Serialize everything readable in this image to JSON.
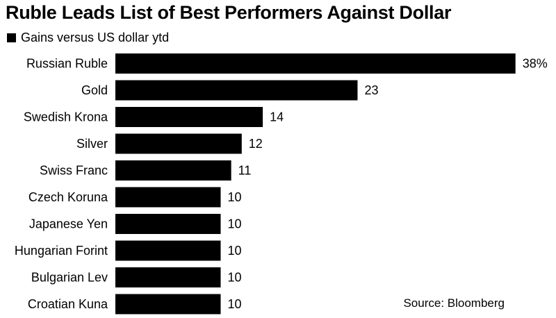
{
  "chart_data": {
    "type": "bar",
    "orientation": "horizontal",
    "title": "Ruble Leads List of Best Performers Against Dollar",
    "legend_position": "top-left",
    "categories": [
      "Russian Ruble",
      "Gold",
      "Swedish Krona",
      "Silver",
      "Swiss Franc",
      "Czech Koruna",
      "Japanese Yen",
      "Hungarian Forint",
      "Bulgarian Lev",
      "Croatian Kuna"
    ],
    "series": [
      {
        "name": "Gains versus US dollar ytd",
        "values": [
          38.0,
          23.0,
          14.0,
          12.0,
          11.0,
          10.0,
          10.0,
          10.0,
          10.0,
          10.0
        ],
        "data_labels": [
          "38%",
          "23",
          "14",
          "12",
          "11",
          "10",
          "10",
          "10",
          "10",
          "10"
        ]
      }
    ],
    "xlim": [
      0,
      40
    ],
    "grid": false,
    "bar_color": "#000000",
    "source": "Source: Bloomberg"
  }
}
